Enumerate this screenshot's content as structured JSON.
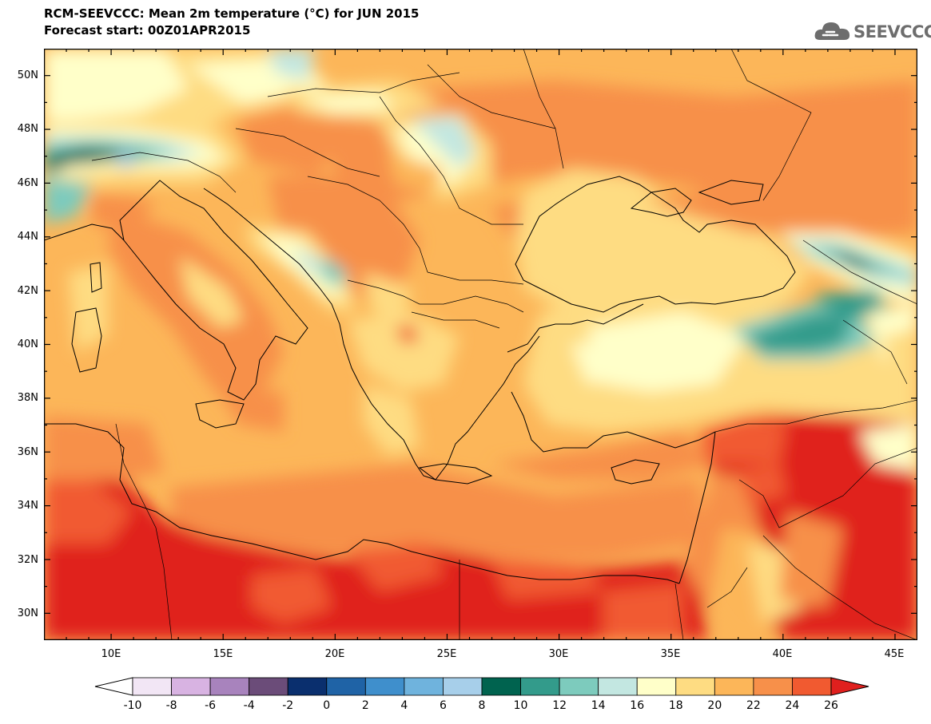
{
  "header": {
    "title": "RCM-SEEVCCC: Mean 2m temperature (°C) for JUN 2015",
    "subtitle": "Forecast start: 00Z01APR2015",
    "logo_text": "SEEVCCC"
  },
  "map": {
    "lon_range": [
      7,
      46
    ],
    "lat_range": [
      29,
      51
    ],
    "lat_ticks": [
      "50N",
      "48N",
      "46N",
      "44N",
      "42N",
      "40N",
      "38N",
      "36N",
      "34N",
      "32N",
      "30N"
    ],
    "lon_ticks": [
      "10E",
      "15E",
      "20E",
      "25E",
      "30E",
      "35E",
      "40E",
      "45E"
    ],
    "colorbar": {
      "labels": [
        "-10",
        "-8",
        "-6",
        "-4",
        "-2",
        "0",
        "2",
        "4",
        "6",
        "8",
        "10",
        "12",
        "14",
        "16",
        "18",
        "20",
        "22",
        "24",
        "26"
      ],
      "low_color": "#ffffff",
      "high_color": "#e0201e",
      "colors": [
        "#f2e6f5",
        "#d8b3e2",
        "#a883bd",
        "#6b4c79",
        "#0a2f6e",
        "#1f63a6",
        "#3f8fcc",
        "#6fb3dd",
        "#a7cfea",
        "#00634f",
        "#339b8b",
        "#7dcbbd",
        "#c3e7e1",
        "#ffffc9",
        "#fedc82",
        "#fcb659",
        "#f7904a",
        "#f15a30"
      ]
    }
  }
}
